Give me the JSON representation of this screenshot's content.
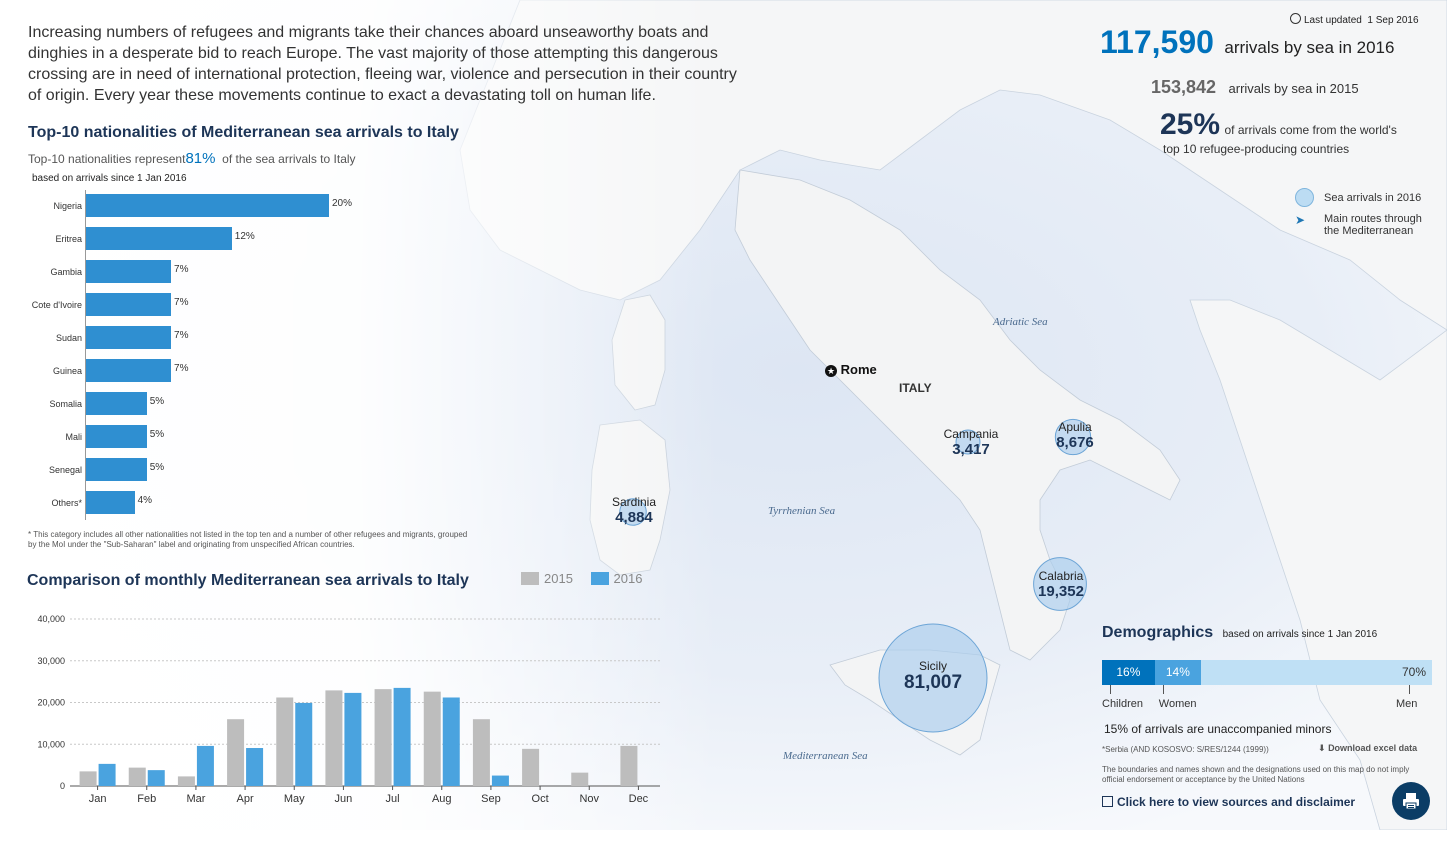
{
  "intro": "Increasing numbers of refugees and migrants take their chances aboard unseaworthy boats and dinghies in a desperate bid to reach Europe. The vast majority of those attempting this dangerous crossing are in need of international protection, fleeing war, violence and persecution in their country of origin. Every year these movements continue to exact a devastating toll on human life.",
  "nationalities": {
    "title": "Top-10 nationalities of Mediterranean sea arrivals to Italy",
    "subtitle_prefix": "Top-10 nationalities represent",
    "subtitle_pct": "81%",
    "subtitle_suffix": "of the sea arrivals to Italy",
    "basis": "based on arrivals since 1 Jan 2016",
    "footnote": "* This category includes all other nationalities not listed in the top ten and a number of other refugees and migrants, grouped by the MoI under the \"Sub-Saharan\" label and originating from unspecified   African countries."
  },
  "monthly": {
    "title": "Comparison of monthly Mediterranean sea arrivals to Italy",
    "legend": [
      {
        "label": "2015",
        "color": "#bdbdbd"
      },
      {
        "label": "2016",
        "color": "#4aa3df"
      }
    ]
  },
  "header_stats": {
    "last_updated_label": "Last updated",
    "last_updated_date": "1 Sep 2016",
    "arrivals_2016": "117,590",
    "arrivals_2016_label": "arrivals by sea in 2016",
    "arrivals_2015": "153,842",
    "arrivals_2015_label": "arrivals by sea in 2015",
    "pct": "25%",
    "pct_label_1": "of arrivals come from the world's",
    "pct_label_2": "top 10 refugee-producing countries"
  },
  "map_legend": {
    "bubble_label": "Sea arrivals in 2016",
    "route_label_1": "Main routes through",
    "route_label_2": "the Mediterranean"
  },
  "map": {
    "capital": "Rome",
    "country": "ITALY",
    "seas": [
      "Adriatic Sea",
      "Tyrrhenian Sea",
      "Mediterranean Sea"
    ],
    "regions": [
      {
        "name": "Sicily",
        "value": "81,007",
        "arrivals": 81007
      },
      {
        "name": "Calabria",
        "value": "19,352",
        "arrivals": 19352
      },
      {
        "name": "Apulia",
        "value": "8,676",
        "arrivals": 8676
      },
      {
        "name": "Sardinia",
        "value": "4,884",
        "arrivals": 4884
      },
      {
        "name": "Campania",
        "value": "3,417",
        "arrivals": 3417
      }
    ]
  },
  "demographics": {
    "title": "Demographics",
    "basis": "based on arrivals since 1 Jan 2016",
    "segments": [
      {
        "label": "Children",
        "pct": "16%",
        "share": 16,
        "color": "#0072bc",
        "text_color": "#ffffff"
      },
      {
        "label": "Women",
        "pct": "14%",
        "share": 14,
        "color": "#4aa3df",
        "text_color": "#ffffff"
      },
      {
        "label": "Men",
        "pct": "70%",
        "share": 70,
        "color": "#bfe0f5",
        "text_color": "#333333"
      }
    ],
    "minors": "15% of arrivals are unaccompanied minors",
    "serbia_note": "*Serbia (AND KOSOSVO: S/RES/1244 (1999))",
    "download": "Download excel data",
    "disclaimer": "The boundaries and names shown and the designations used on this map do not imply official endorsement or acceptance by the United Nations",
    "sources_link": "Click here to view sources and disclaimer"
  },
  "chart_data": [
    {
      "type": "bar",
      "orientation": "horizontal",
      "title": "Top-10 nationalities of Mediterranean sea arrivals to Italy",
      "categories": [
        "Nigeria",
        "Eritrea",
        "Gambia",
        "Cote d'Ivoire",
        "Sudan",
        "Guinea",
        "Somalia",
        "Mali",
        "Senegal",
        "Others*"
      ],
      "values": [
        20,
        12,
        7,
        7,
        7,
        7,
        5,
        5,
        5,
        4
      ],
      "labels": [
        "20%",
        "12%",
        "7%",
        "7%",
        "7%",
        "7%",
        "5%",
        "5%",
        "5%",
        "4%"
      ],
      "xlim": [
        0,
        20
      ],
      "color": "#2f8fd1"
    },
    {
      "type": "bar",
      "title": "Comparison of monthly Mediterranean sea arrivals to Italy",
      "categories": [
        "Jan",
        "Feb",
        "Mar",
        "Apr",
        "May",
        "Jun",
        "Jul",
        "Aug",
        "Sep",
        "Oct",
        "Nov",
        "Dec"
      ],
      "series": [
        {
          "name": "2015",
          "color": "#bdbdbd",
          "values": [
            3500,
            4400,
            2300,
            16000,
            21200,
            22900,
            23200,
            22600,
            16000,
            8900,
            3200,
            9600
          ]
        },
        {
          "name": "2016",
          "color": "#4aa3df",
          "values": [
            5300,
            3800,
            9600,
            9100,
            19900,
            22300,
            23500,
            21200,
            2500,
            null,
            null,
            null
          ]
        }
      ],
      "ylim": [
        0,
        40000
      ],
      "yticks": [
        "0",
        "10,000",
        "20,000",
        "30,000",
        "40,000"
      ],
      "ytick_values": [
        0,
        10000,
        20000,
        30000,
        40000
      ],
      "grid": true
    }
  ]
}
